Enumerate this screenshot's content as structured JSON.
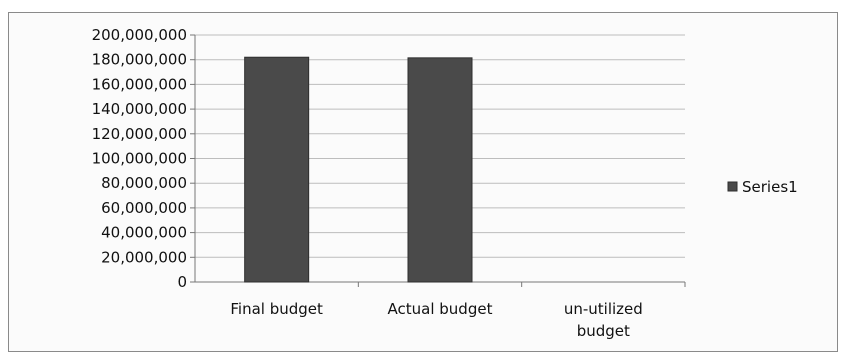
{
  "chart_data": {
    "type": "bar",
    "categories": [
      "Final budget",
      "Actual budget",
      "un-utilized budget"
    ],
    "category_lines": [
      [
        "Final budget"
      ],
      [
        "Actual budget"
      ],
      [
        "un-utilized",
        "budget"
      ]
    ],
    "series": [
      {
        "name": "Series1",
        "values": [
          182000000,
          181500000,
          0
        ],
        "color": "#4a4a4a"
      }
    ],
    "ylim": [
      0,
      200000000
    ],
    "yticks": [
      0,
      20000000,
      40000000,
      60000000,
      80000000,
      100000000,
      120000000,
      140000000,
      160000000,
      180000000,
      200000000
    ],
    "ytick_labels": [
      "0",
      "20,000,000",
      "40,000,000",
      "60,000,000",
      "80,000,000",
      "100,000,000",
      "120,000,000",
      "140,000,000",
      "160,000,000",
      "180,000,000",
      "200,000,000"
    ],
    "grid": true,
    "legend": {
      "position": "right",
      "label": "Series1"
    },
    "title": "",
    "xlabel": "",
    "ylabel": ""
  }
}
